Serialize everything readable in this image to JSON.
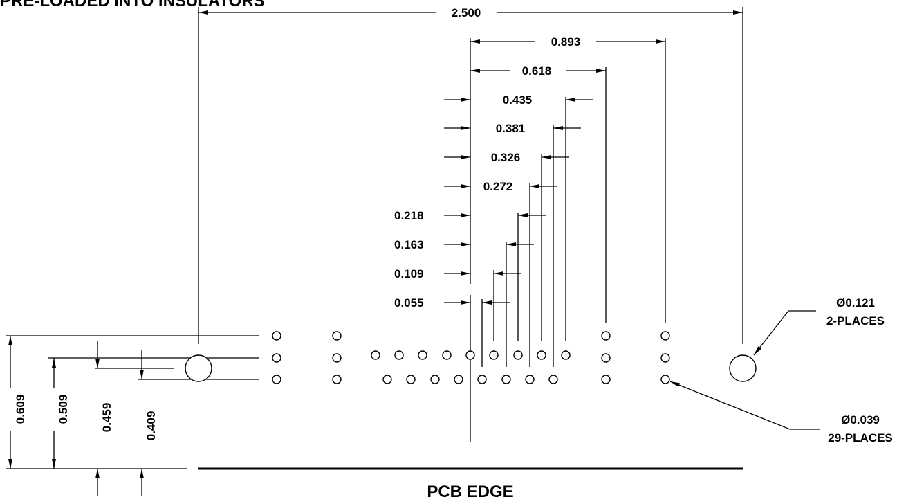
{
  "title": "PRE-LOADED INTO INSULATORS",
  "dimensions": {
    "overall": "2.500",
    "d0893": "0.893",
    "d0618": "0.618",
    "d0435": "0.435",
    "d0381": "0.381",
    "d0326": "0.326",
    "d0272": "0.272",
    "d0218": "0.218",
    "d0163": "0.163",
    "d0109": "0.109",
    "d0055": "0.055",
    "v0609": "0.609",
    "v0509": "0.509",
    "v0459": "0.459",
    "v0409": "0.409"
  },
  "callouts": {
    "large_hole_dia": "Ø0.121",
    "large_hole_qty": "2-PLACES",
    "small_hole_dia": "Ø0.039",
    "small_hole_qty": "29-PLACES"
  },
  "pcb_edge_label": "PCB EDGE",
  "hole_counts": {
    "small": 29,
    "large": 2
  }
}
